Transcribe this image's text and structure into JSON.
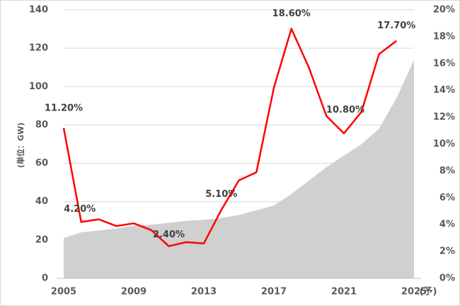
{
  "chart_data": {
    "type": "line",
    "ylabel": "(単位：GW)",
    "x": [
      2005,
      2006,
      2007,
      2008,
      2009,
      2010,
      2011,
      2012,
      2013,
      2014,
      2015,
      2016,
      2017,
      2018,
      2019,
      2020,
      2021,
      2022,
      2023,
      2024,
      2025
    ],
    "x_tick_labels": [
      "2005",
      "2009",
      "2013",
      "2017",
      "2021",
      "2025"
    ],
    "x_suffix": "(予)",
    "ylim_left": [
      0,
      140
    ],
    "left_ticks": [
      "0",
      "20",
      "40",
      "60",
      "80",
      "100",
      "120",
      "140"
    ],
    "ylim_right": [
      0,
      20
    ],
    "right_ticks": [
      "0%",
      "2%",
      "4%",
      "6%",
      "8%",
      "10%",
      "12%",
      "14%",
      "16%",
      "18%",
      "20%"
    ],
    "grid": true,
    "series": [
      {
        "kind": "area",
        "axis": "left",
        "color": "#d0d0d0",
        "values": [
          21,
          24,
          25,
          26,
          27.5,
          28,
          29,
          30,
          30.5,
          31.5,
          33,
          35.5,
          38,
          44,
          51,
          58,
          64,
          70,
          78,
          94,
          114
        ]
      },
      {
        "kind": "line",
        "axis": "right",
        "color": "#ff0000",
        "values": [
          11.2,
          4.2,
          4.4,
          3.9,
          4.1,
          3.6,
          2.4,
          2.7,
          2.6,
          5.1,
          7.3,
          7.9,
          14.2,
          18.6,
          15.7,
          12.1,
          10.8,
          12.4,
          16.7,
          17.7,
          null
        ]
      }
    ],
    "data_labels": [
      {
        "x": 2005,
        "text": "11.20%"
      },
      {
        "x": 2006,
        "text": "4.20%"
      },
      {
        "x": 2011,
        "text": "2.40%"
      },
      {
        "x": 2014,
        "text": "5.10%"
      },
      {
        "x": 2018,
        "text": "18.60%"
      },
      {
        "x": 2021,
        "text": "10.80%"
      },
      {
        "x": 2024,
        "text": "17.70%"
      }
    ]
  }
}
